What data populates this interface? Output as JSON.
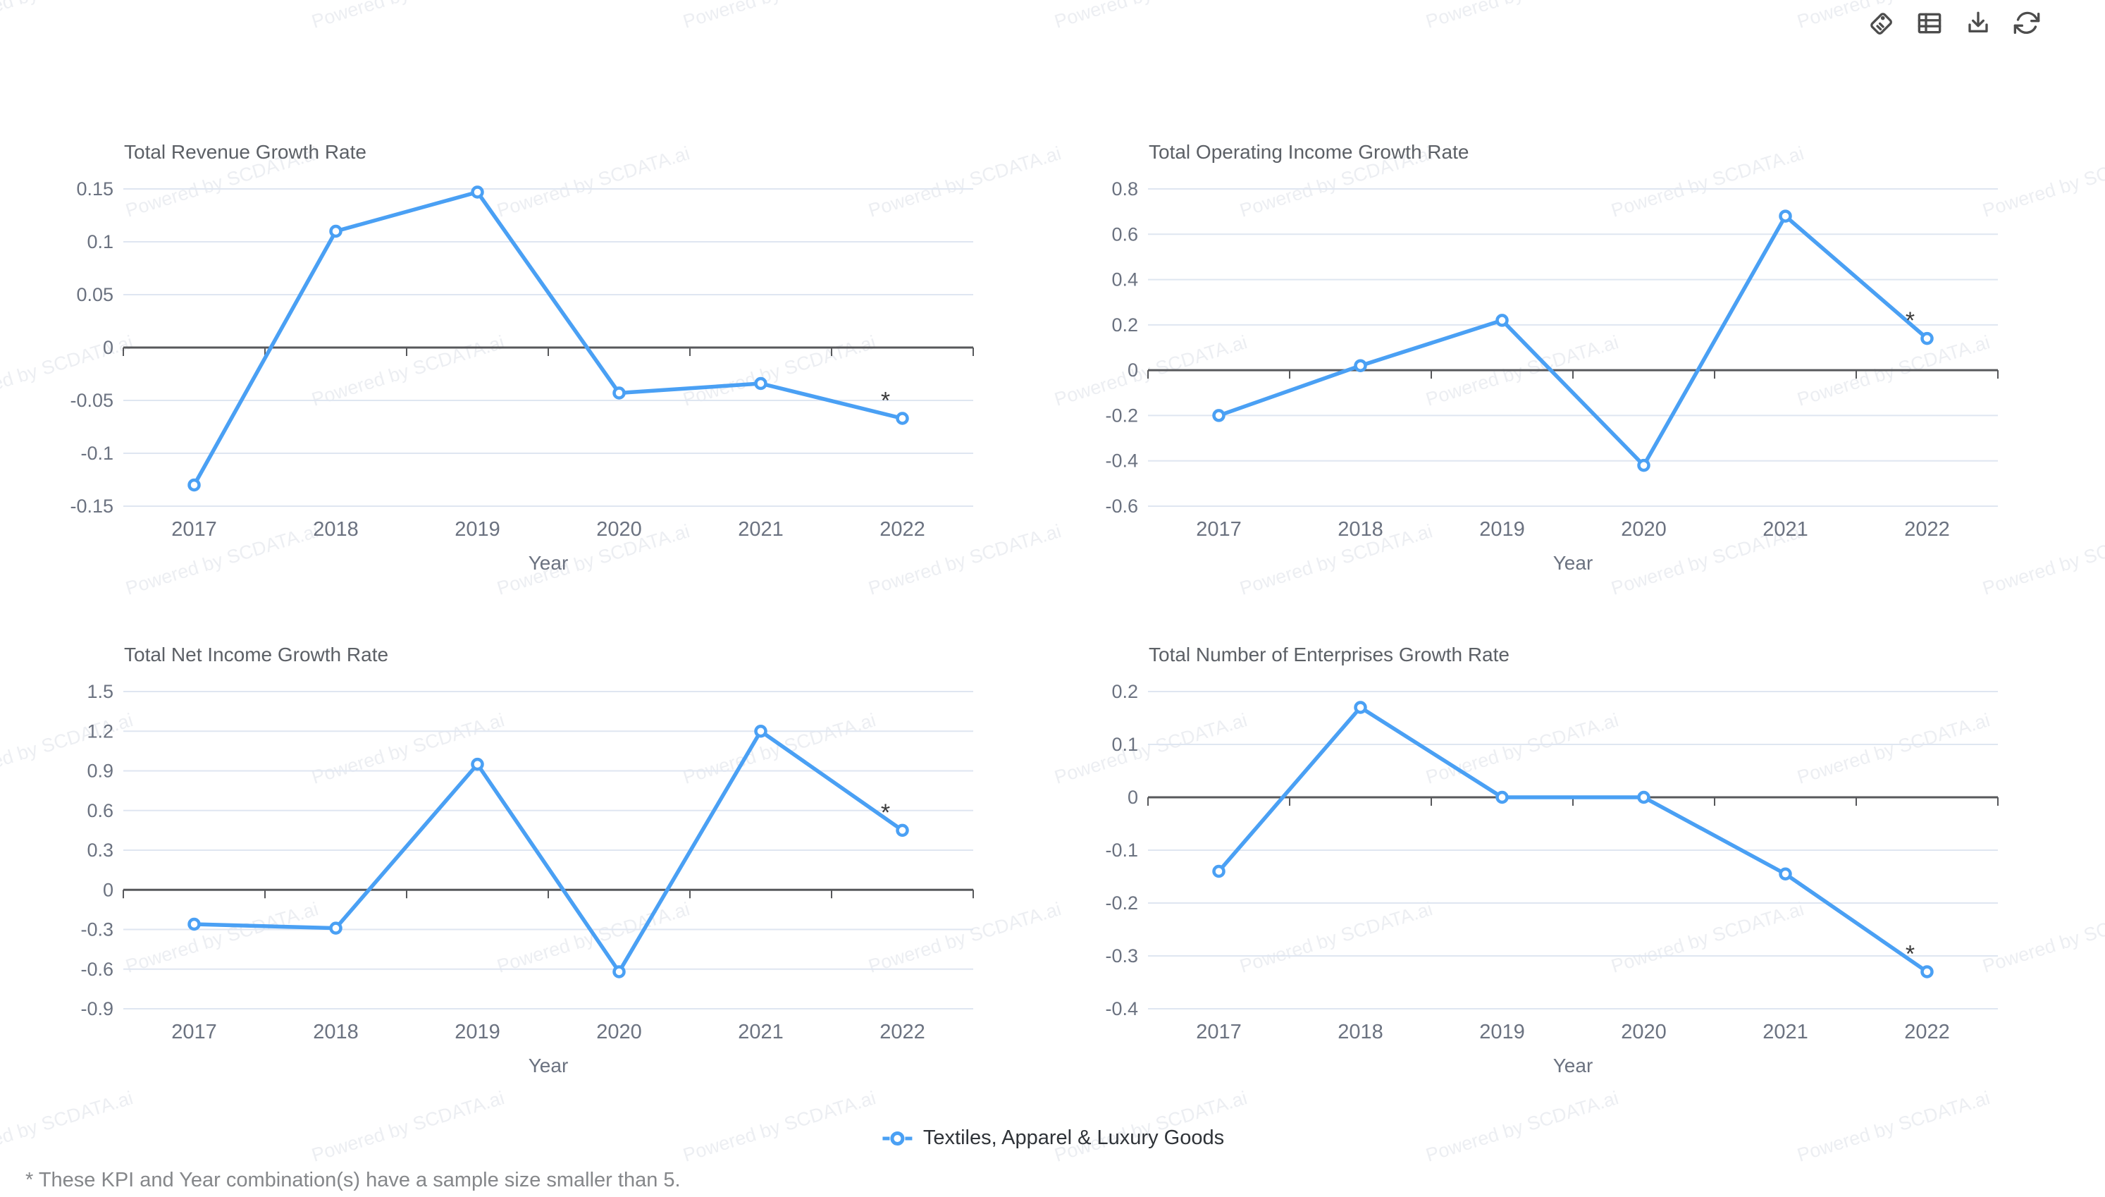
{
  "watermark": {
    "text": "Powered by SCDATA.ai"
  },
  "toolbar": {
    "icons": [
      "tag",
      "table",
      "download",
      "refresh"
    ]
  },
  "legend": {
    "label": "Textiles, Apparel & Luxury Goods",
    "series_color": "#4aa0f4"
  },
  "footnote": "* These KPI and Year combination(s) have a sample size smaller than 5.",
  "colors": {
    "line": "#4aa0f4",
    "gridline": "#dfe6f1",
    "axis": "#57585b",
    "title_text": "#5c6066",
    "tick_text": "#6b7280",
    "legend_text": "#2f3338",
    "footnote_text": "#85878a",
    "icon": "#4d4d4d",
    "watermark_text": "rgba(140,152,178,0.17)"
  },
  "chart_data": [
    {
      "type": "line",
      "title": "Total Revenue Growth Rate",
      "xlabel": "Year",
      "ylabel": "",
      "categories": [
        "2017",
        "2018",
        "2019",
        "2020",
        "2021",
        "2022"
      ],
      "series": [
        {
          "name": "Textiles, Apparel & Luxury Goods",
          "values": [
            -0.13,
            0.11,
            0.147,
            -0.043,
            -0.034,
            -0.067
          ]
        }
      ],
      "y_ticks": [
        "0.15",
        "0.1",
        "0.05",
        "0",
        "-0.05",
        "-0.1",
        "-0.15"
      ],
      "ylim": [
        -0.15,
        0.15
      ],
      "grid": true,
      "legend_position": "bottom",
      "annotations": [
        {
          "year": "2022",
          "text": "*"
        }
      ]
    },
    {
      "type": "line",
      "title": "Total Operating Income Growth Rate",
      "xlabel": "Year",
      "ylabel": "",
      "categories": [
        "2017",
        "2018",
        "2019",
        "2020",
        "2021",
        "2022"
      ],
      "series": [
        {
          "name": "Textiles, Apparel & Luxury Goods",
          "values": [
            -0.2,
            0.02,
            0.22,
            -0.42,
            0.68,
            0.14
          ]
        }
      ],
      "y_ticks": [
        "0.8",
        "0.6",
        "0.4",
        "0.2",
        "0",
        "-0.2",
        "-0.4",
        "-0.6"
      ],
      "ylim": [
        -0.6,
        0.8
      ],
      "grid": true,
      "legend_position": "bottom",
      "annotations": [
        {
          "year": "2022",
          "text": "*"
        }
      ]
    },
    {
      "type": "line",
      "title": "Total Net Income Growth Rate",
      "xlabel": "Year",
      "ylabel": "",
      "categories": [
        "2017",
        "2018",
        "2019",
        "2020",
        "2021",
        "2022"
      ],
      "series": [
        {
          "name": "Textiles, Apparel & Luxury Goods",
          "values": [
            -0.26,
            -0.29,
            0.95,
            -0.62,
            1.2,
            0.45
          ]
        }
      ],
      "y_ticks": [
        "1.5",
        "1.2",
        "0.9",
        "0.6",
        "0.3",
        "0",
        "-0.3",
        "-0.6",
        "-0.9"
      ],
      "ylim": [
        -0.9,
        1.5
      ],
      "grid": true,
      "legend_position": "bottom",
      "annotations": [
        {
          "year": "2022",
          "text": "*"
        }
      ]
    },
    {
      "type": "line",
      "title": "Total Number of Enterprises Growth Rate",
      "xlabel": "Year",
      "ylabel": "",
      "categories": [
        "2017",
        "2018",
        "2019",
        "2020",
        "2021",
        "2022"
      ],
      "series": [
        {
          "name": "Textiles, Apparel & Luxury Goods",
          "values": [
            -0.14,
            0.17,
            0,
            0,
            -0.145,
            -0.33
          ]
        }
      ],
      "y_ticks": [
        "0.2",
        "0.1",
        "0",
        "-0.1",
        "-0.2",
        "-0.3",
        "-0.4"
      ],
      "ylim": [
        -0.4,
        0.2
      ],
      "grid": true,
      "legend_position": "bottom",
      "annotations": [
        {
          "year": "2022",
          "text": "*"
        }
      ]
    }
  ]
}
